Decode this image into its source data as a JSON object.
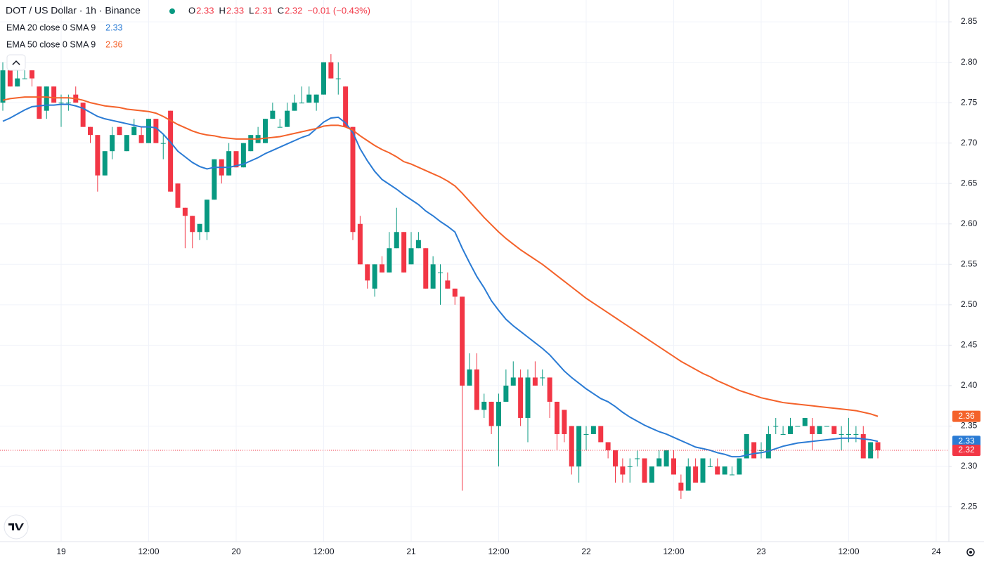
{
  "chart_data": {
    "type": "candlestick",
    "title": "DOT / US Dollar · 1h · Binance",
    "ohlc_labels": [
      "O",
      "H",
      "L",
      "C"
    ],
    "change": "−0.01 (−0.43%)",
    "up_color": "#089981",
    "down_color": "#f23645",
    "ylim": [
      2.207,
      2.877
    ],
    "yticks": [
      2.25,
      {
        "value": 2.3,
        "label": "2.30"
      },
      2.35,
      {
        "value": 2.4,
        "label": "2.40"
      },
      2.45,
      {
        "value": 2.5,
        "label": "2.50"
      },
      2.55,
      {
        "value": 2.6,
        "label": "2.60"
      },
      2.65,
      {
        "value": 2.7,
        "label": "2.70"
      },
      2.75,
      {
        "value": 2.8,
        "label": "2.80"
      },
      2.85
    ],
    "grid": true,
    "categories": [
      null,
      null,
      null,
      null,
      null,
      null,
      null,
      null,
      "19",
      null,
      null,
      null,
      null,
      null,
      null,
      null,
      null,
      null,
      null,
      null,
      "12:00",
      null,
      null,
      null,
      null,
      null,
      null,
      null,
      null,
      null,
      null,
      null,
      "20",
      null,
      null,
      null,
      null,
      null,
      null,
      null,
      null,
      null,
      null,
      null,
      "12:00",
      null,
      null,
      null,
      null,
      null,
      null,
      null,
      null,
      null,
      null,
      null,
      "21",
      null,
      null,
      null,
      null,
      null,
      null,
      null,
      null,
      null,
      null,
      null,
      "12:00",
      null,
      null,
      null,
      null,
      null,
      null,
      null,
      null,
      null,
      null,
      null,
      "22",
      null,
      null,
      null,
      null,
      null,
      null,
      null,
      null,
      null,
      null,
      null,
      "12:00",
      null,
      null,
      null,
      null,
      null,
      null,
      null,
      null,
      null,
      null,
      null,
      "23",
      null,
      null,
      null,
      null,
      null,
      null,
      null,
      null,
      null,
      null,
      null,
      "12:00",
      null,
      null,
      null,
      null,
      null,
      null,
      null,
      null,
      null,
      null,
      null,
      "24"
    ],
    "candles": [
      [
        2.75,
        2.8,
        2.74,
        2.79
      ],
      [
        2.79,
        2.8,
        2.77,
        2.77
      ],
      [
        2.77,
        2.79,
        2.77,
        2.78
      ],
      [
        2.78,
        2.79,
        2.78,
        2.78
      ],
      [
        2.79,
        2.79,
        2.77,
        2.78
      ],
      [
        2.77,
        2.77,
        2.73,
        2.73
      ],
      [
        2.74,
        2.77,
        2.73,
        2.77
      ],
      [
        2.77,
        2.77,
        2.75,
        2.75
      ],
      [
        2.75,
        2.76,
        2.72,
        2.75
      ],
      [
        2.75,
        2.76,
        2.74,
        2.75
      ],
      [
        2.76,
        2.77,
        2.75,
        2.75
      ],
      [
        2.75,
        2.75,
        2.72,
        2.72
      ],
      [
        2.72,
        2.72,
        2.7,
        2.71
      ],
      [
        2.71,
        2.71,
        2.64,
        2.66
      ],
      [
        2.66,
        2.69,
        2.66,
        2.69
      ],
      [
        2.69,
        2.72,
        2.68,
        2.71
      ],
      [
        2.72,
        2.72,
        2.71,
        2.71
      ],
      [
        2.69,
        2.71,
        2.69,
        2.71
      ],
      [
        2.71,
        2.73,
        2.71,
        2.72
      ],
      [
        2.71,
        2.72,
        2.7,
        2.7
      ],
      [
        2.7,
        2.73,
        2.7,
        2.73
      ],
      [
        2.73,
        2.73,
        2.7,
        2.7
      ],
      [
        2.7,
        2.71,
        2.68,
        2.7
      ],
      [
        2.74,
        2.74,
        2.64,
        2.64
      ],
      [
        2.65,
        2.65,
        2.62,
        2.62
      ],
      [
        2.62,
        2.62,
        2.57,
        2.61
      ],
      [
        2.61,
        2.61,
        2.57,
        2.59
      ],
      [
        2.59,
        2.6,
        2.58,
        2.6
      ],
      [
        2.59,
        2.63,
        2.58,
        2.63
      ],
      [
        2.63,
        2.68,
        2.63,
        2.68
      ],
      [
        2.68,
        2.68,
        2.65,
        2.66
      ],
      [
        2.66,
        2.7,
        2.66,
        2.69
      ],
      [
        2.69,
        2.69,
        2.67,
        2.67
      ],
      [
        2.67,
        2.7,
        2.67,
        2.7
      ],
      [
        2.69,
        2.71,
        2.69,
        2.71
      ],
      [
        2.7,
        2.72,
        2.7,
        2.71
      ],
      [
        2.7,
        2.73,
        2.7,
        2.73
      ],
      [
        2.73,
        2.75,
        2.73,
        2.74
      ],
      [
        2.72,
        2.73,
        2.72,
        2.72
      ],
      [
        2.72,
        2.75,
        2.72,
        2.74
      ],
      [
        2.74,
        2.76,
        2.74,
        2.75
      ],
      [
        2.75,
        2.77,
        2.75,
        2.75
      ],
      [
        2.75,
        2.77,
        2.75,
        2.76
      ],
      [
        2.75,
        2.76,
        2.74,
        2.76
      ],
      [
        2.76,
        2.8,
        2.76,
        2.8
      ],
      [
        2.8,
        2.81,
        2.78,
        2.78
      ],
      [
        2.78,
        2.8,
        2.76,
        2.78
      ],
      [
        2.77,
        2.77,
        2.72,
        2.72
      ],
      [
        2.72,
        2.72,
        2.58,
        2.59
      ],
      [
        2.6,
        2.61,
        2.55,
        2.55
      ],
      [
        2.55,
        2.55,
        2.52,
        2.53
      ],
      [
        2.52,
        2.55,
        2.51,
        2.55
      ],
      [
        2.55,
        2.56,
        2.54,
        2.54
      ],
      [
        2.54,
        2.59,
        2.54,
        2.57
      ],
      [
        2.57,
        2.62,
        2.57,
        2.59
      ],
      [
        2.59,
        2.59,
        2.54,
        2.54
      ],
      [
        2.55,
        2.59,
        2.55,
        2.57
      ],
      [
        2.57,
        2.59,
        2.57,
        2.58
      ],
      [
        2.57,
        2.57,
        2.52,
        2.52
      ],
      [
        2.52,
        2.56,
        2.52,
        2.55
      ],
      [
        2.54,
        2.55,
        2.5,
        2.54
      ],
      [
        2.53,
        2.54,
        2.52,
        2.52
      ],
      [
        2.52,
        2.52,
        2.5,
        2.51
      ],
      [
        2.51,
        2.51,
        2.27,
        2.4
      ],
      [
        2.4,
        2.44,
        2.4,
        2.42
      ],
      [
        2.42,
        2.44,
        2.37,
        2.37
      ],
      [
        2.37,
        2.39,
        2.36,
        2.38
      ],
      [
        2.38,
        2.38,
        2.34,
        2.35
      ],
      [
        2.35,
        2.39,
        2.3,
        2.38
      ],
      [
        2.38,
        2.42,
        2.38,
        2.4
      ],
      [
        2.4,
        2.43,
        2.4,
        2.41
      ],
      [
        2.41,
        2.42,
        2.35,
        2.36
      ],
      [
        2.36,
        2.42,
        2.33,
        2.41
      ],
      [
        2.41,
        2.43,
        2.4,
        2.4
      ],
      [
        2.41,
        2.42,
        2.4,
        2.41
      ],
      [
        2.41,
        2.41,
        2.36,
        2.38
      ],
      [
        2.38,
        2.38,
        2.32,
        2.34
      ],
      [
        2.37,
        2.37,
        2.33,
        2.34
      ],
      [
        2.35,
        2.35,
        2.29,
        2.3
      ],
      [
        2.3,
        2.35,
        2.28,
        2.35
      ],
      [
        2.34,
        2.35,
        2.32,
        2.34
      ],
      [
        2.34,
        2.35,
        2.34,
        2.35
      ],
      [
        2.35,
        2.35,
        2.33,
        2.33
      ],
      [
        2.33,
        2.33,
        2.31,
        2.32
      ],
      [
        2.32,
        2.32,
        2.28,
        2.3
      ],
      [
        2.3,
        2.31,
        2.28,
        2.29
      ],
      [
        2.3,
        2.31,
        2.28,
        2.3
      ],
      [
        2.31,
        2.32,
        2.3,
        2.31
      ],
      [
        2.31,
        2.31,
        2.28,
        2.28
      ],
      [
        2.28,
        2.3,
        2.28,
        2.3
      ],
      [
        2.3,
        2.32,
        2.3,
        2.31
      ],
      [
        2.3,
        2.32,
        2.3,
        2.32
      ],
      [
        2.31,
        2.32,
        2.29,
        2.29
      ],
      [
        2.28,
        2.29,
        2.26,
        2.27
      ],
      [
        2.27,
        2.31,
        2.27,
        2.3
      ],
      [
        2.3,
        2.31,
        2.28,
        2.28
      ],
      [
        2.28,
        2.31,
        2.28,
        2.31
      ],
      [
        2.3,
        2.31,
        2.3,
        2.3
      ],
      [
        2.3,
        2.31,
        2.29,
        2.29
      ],
      [
        2.29,
        2.3,
        2.29,
        2.3
      ],
      [
        2.29,
        2.3,
        2.29,
        2.29
      ],
      [
        2.29,
        2.31,
        2.29,
        2.31
      ],
      [
        2.31,
        2.34,
        2.31,
        2.34
      ],
      [
        2.33,
        2.33,
        2.31,
        2.31
      ],
      [
        2.32,
        2.33,
        2.31,
        2.32
      ],
      [
        2.31,
        2.35,
        2.31,
        2.34
      ],
      [
        2.35,
        2.36,
        2.34,
        2.35
      ],
      [
        2.34,
        2.35,
        2.34,
        2.34
      ],
      [
        2.34,
        2.36,
        2.34,
        2.35
      ],
      [
        2.35,
        2.35,
        2.35,
        2.35
      ],
      [
        2.35,
        2.36,
        2.35,
        2.36
      ],
      [
        2.35,
        2.36,
        2.32,
        2.34
      ],
      [
        2.34,
        2.35,
        2.34,
        2.35
      ],
      [
        2.35,
        2.35,
        2.35,
        2.35
      ],
      [
        2.35,
        2.35,
        2.34,
        2.34
      ],
      [
        2.34,
        2.35,
        2.32,
        2.34
      ],
      [
        2.34,
        2.36,
        2.33,
        2.34
      ],
      [
        2.34,
        2.35,
        2.33,
        2.34
      ],
      [
        2.34,
        2.35,
        2.31,
        2.31
      ],
      [
        2.31,
        2.33,
        2.31,
        2.33
      ],
      [
        2.33,
        2.33,
        2.31,
        2.32
      ],
      null,
      null,
      null,
      null,
      null,
      null,
      null,
      null
    ],
    "series": [
      {
        "name": "EMA 20 close 0 SMA 9",
        "color": "#2a7bd4",
        "last_label": "2.33",
        "values": [
          2.727,
          2.731,
          2.736,
          2.741,
          2.745,
          2.746,
          2.747,
          2.747,
          2.748,
          2.748,
          2.746,
          2.743,
          2.738,
          2.733,
          2.73,
          2.728,
          2.726,
          2.724,
          2.722,
          2.72,
          2.72,
          2.719,
          2.711,
          2.701,
          2.69,
          2.683,
          2.676,
          2.671,
          2.668,
          2.67,
          2.67,
          2.67,
          2.672,
          2.674,
          2.678,
          2.682,
          2.687,
          2.691,
          2.695,
          2.699,
          2.703,
          2.707,
          2.71,
          2.718,
          2.726,
          2.731,
          2.732,
          2.725,
          2.713,
          2.693,
          2.678,
          2.665,
          2.655,
          2.649,
          2.643,
          2.636,
          2.63,
          2.624,
          2.616,
          2.61,
          2.603,
          2.597,
          2.59,
          2.57,
          2.552,
          2.535,
          2.521,
          2.505,
          2.493,
          2.482,
          2.474,
          2.467,
          2.46,
          2.453,
          2.446,
          2.438,
          2.428,
          2.418,
          2.41,
          2.403,
          2.396,
          2.39,
          2.384,
          2.38,
          2.374,
          2.367,
          2.361,
          2.356,
          2.351,
          2.347,
          2.343,
          2.34,
          2.336,
          2.332,
          2.328,
          2.324,
          2.322,
          2.32,
          2.317,
          2.315,
          2.312,
          2.312,
          2.314,
          2.316,
          2.317,
          2.319,
          2.322,
          2.325,
          2.327,
          2.329,
          2.33,
          2.331,
          2.332,
          2.333,
          2.334,
          2.335,
          2.335,
          2.335,
          2.334,
          2.333,
          2.331,
          null,
          null,
          null,
          null,
          null,
          null,
          null,
          null
        ]
      },
      {
        "name": "EMA 50 close 0 SMA 9",
        "color": "#f4622a",
        "last_label": "2.36",
        "values": [
          2.753,
          2.755,
          2.756,
          2.757,
          2.757,
          2.757,
          2.757,
          2.756,
          2.756,
          2.756,
          2.755,
          2.753,
          2.75,
          2.748,
          2.746,
          2.745,
          2.744,
          2.742,
          2.741,
          2.74,
          2.739,
          2.737,
          2.733,
          2.728,
          2.723,
          2.719,
          2.715,
          2.712,
          2.71,
          2.709,
          2.707,
          2.706,
          2.705,
          2.705,
          2.705,
          2.705,
          2.706,
          2.707,
          2.708,
          2.71,
          2.712,
          2.714,
          2.716,
          2.718,
          2.721,
          2.722,
          2.722,
          2.72,
          2.716,
          2.709,
          2.703,
          2.697,
          2.692,
          2.688,
          2.683,
          2.677,
          2.674,
          2.67,
          2.666,
          2.662,
          2.658,
          2.653,
          2.647,
          2.638,
          2.628,
          2.618,
          2.608,
          2.599,
          2.59,
          2.582,
          2.575,
          2.568,
          2.562,
          2.556,
          2.55,
          2.543,
          2.536,
          2.529,
          2.522,
          2.515,
          2.508,
          2.502,
          2.496,
          2.49,
          2.484,
          2.478,
          2.472,
          2.466,
          2.46,
          2.454,
          2.448,
          2.442,
          2.436,
          2.43,
          2.425,
          2.42,
          2.415,
          2.411,
          2.406,
          2.402,
          2.398,
          2.394,
          2.391,
          2.388,
          2.385,
          2.383,
          2.381,
          2.379,
          2.378,
          2.377,
          2.376,
          2.375,
          2.374,
          2.373,
          2.372,
          2.371,
          2.37,
          2.369,
          2.367,
          2.365,
          2.362,
          null,
          null,
          null,
          null,
          null,
          null,
          null,
          null
        ]
      }
    ]
  }
}
